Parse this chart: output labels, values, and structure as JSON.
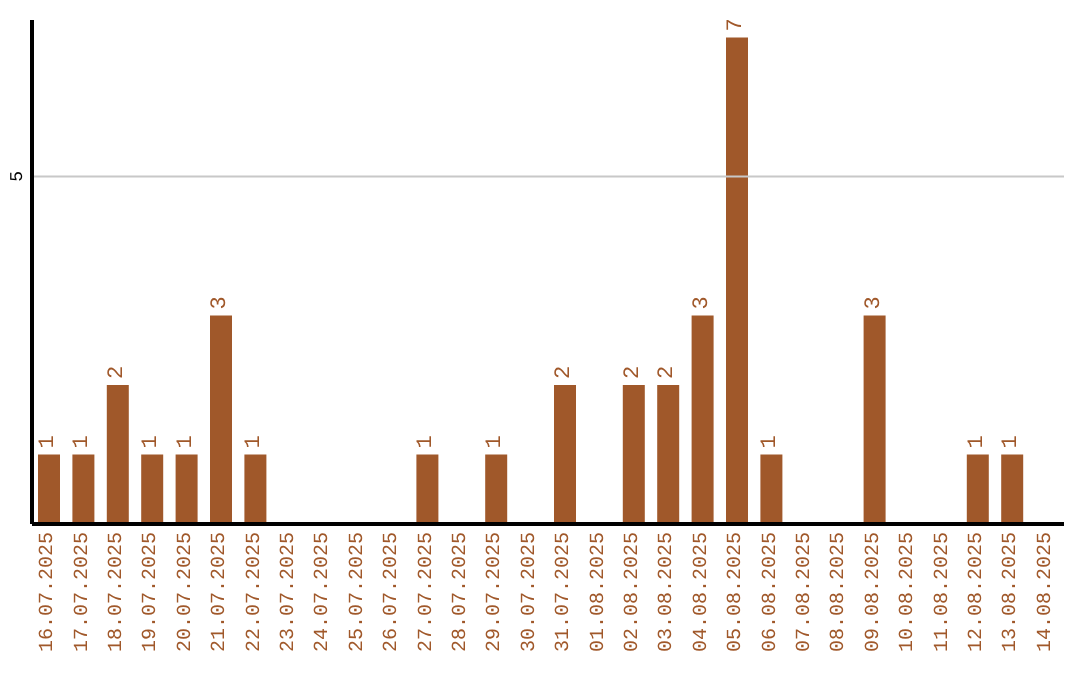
{
  "chart_data": {
    "type": "bar",
    "categories": [
      "16.07.2025",
      "17.07.2025",
      "18.07.2025",
      "19.07.2025",
      "20.07.2025",
      "21.07.2025",
      "22.07.2025",
      "23.07.2025",
      "24.07.2025",
      "25.07.2025",
      "26.07.2025",
      "27.07.2025",
      "28.07.2025",
      "29.07.2025",
      "30.07.2025",
      "31.07.2025",
      "01.08.2025",
      "02.08.2025",
      "03.08.2025",
      "04.08.2025",
      "05.08.2025",
      "06.08.2025",
      "07.08.2025",
      "08.08.2025",
      "09.08.2025",
      "10.08.2025",
      "11.08.2025",
      "12.08.2025",
      "13.08.2025",
      "14.08.2025"
    ],
    "values": [
      1,
      1,
      2,
      1,
      1,
      3,
      1,
      null,
      null,
      null,
      null,
      1,
      null,
      1,
      null,
      2,
      null,
      2,
      2,
      3,
      7,
      1,
      null,
      null,
      3,
      null,
      null,
      1,
      1,
      null
    ],
    "color": "#a0582a",
    "ylim": [
      0,
      7.25
    ],
    "yticks": [
      5
    ],
    "grid": "y",
    "data_labels": true
  }
}
